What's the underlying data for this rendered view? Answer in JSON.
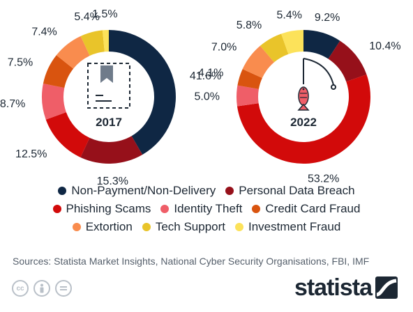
{
  "colors": {
    "Non-Payment/Non-Delivery": "#0f2744",
    "Personal Data Breach": "#96101a",
    "Phishing Scams": "#d20a0a",
    "Identity Theft": "#ef5e68",
    "Credit Card Fraud": "#d9540f",
    "Extortion": "#f98c4e",
    "Tech Support": "#e9c42a",
    "Investment Fraud": "#fce25a"
  },
  "chart_data": [
    {
      "type": "pie",
      "center_label": "2017",
      "icon": "document-bookmark-icon",
      "categories": [
        "Non-Payment/Non-Delivery",
        "Personal Data Breach",
        "Phishing Scams",
        "Identity Theft",
        "Credit Card Fraud",
        "Extortion",
        "Tech Support",
        "Investment Fraud"
      ],
      "values": [
        41.6,
        15.3,
        12.5,
        8.7,
        7.5,
        7.4,
        5.4,
        1.5
      ],
      "labels": [
        "41.6%",
        "15.3%",
        "12.5%",
        "8.7%",
        "7.5%",
        "7.4%",
        "5.4%",
        "1.5%"
      ]
    },
    {
      "type": "pie",
      "center_label": "2022",
      "icon": "fishing-hook-fish-icon",
      "categories": [
        "Non-Payment/Non-Delivery",
        "Personal Data Breach",
        "Phishing Scams",
        "Identity Theft",
        "Credit Card Fraud",
        "Extortion",
        "Tech Support",
        "Investment Fraud"
      ],
      "values": [
        9.2,
        10.4,
        53.2,
        5.0,
        4.1,
        7.0,
        5.8,
        5.4
      ],
      "labels": [
        "9.2%",
        "10.4%",
        "53.2%",
        "5.0%",
        "4.1%",
        "7.0%",
        "5.8%",
        "5.4%"
      ]
    }
  ],
  "legend": {
    "rows": [
      [
        "Non-Payment/Non-Delivery",
        "Personal Data Breach"
      ],
      [
        "Phishing Scams",
        "Identity Theft",
        "Credit Card Fraud"
      ],
      [
        "Extortion",
        "Tech Support",
        "Investment Fraud"
      ]
    ]
  },
  "footer": {
    "sources": "Sources: Statista Market Insights, National Cyber Security Organisations, FBI, IMF",
    "cc_icons": [
      "cc-icon",
      "attribution-icon",
      "no-derivatives-icon"
    ],
    "brand": "statista"
  }
}
